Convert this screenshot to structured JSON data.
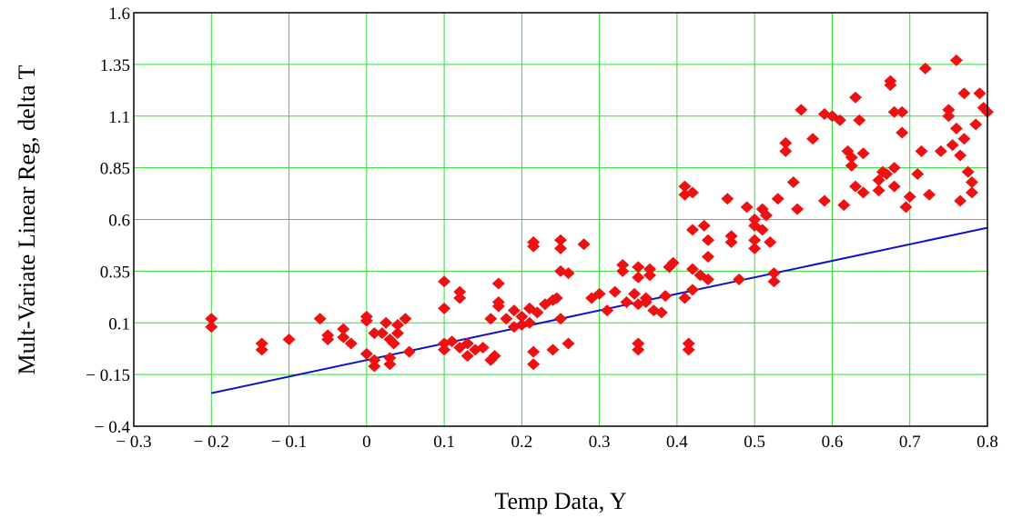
{
  "chart_data": {
    "type": "scatter",
    "title": "",
    "xlabel": "Temp Data, Y",
    "ylabel": "Mult-Variate Linear Reg, delta T",
    "xlim": [
      -0.3,
      0.8
    ],
    "ylim": [
      -0.4,
      1.6
    ],
    "xticks": [
      -0.3,
      -0.2,
      -0.1,
      0,
      0.1,
      0.2,
      0.3,
      0.4,
      0.5,
      0.6,
      0.7,
      0.8
    ],
    "xtick_labels": [
      "− 0.3",
      "− 0.2",
      "− 0.1",
      "0",
      "0.1",
      "0.2",
      "0.3",
      "0.4",
      "0.5",
      "0.6",
      "0.7",
      "0.8"
    ],
    "yticks": [
      -0.4,
      -0.15,
      0.1,
      0.35,
      0.6,
      0.85,
      1.1,
      1.35,
      1.6
    ],
    "ytick_labels": [
      "− 0.4",
      "− 0.15",
      "0.1",
      "0.35",
      "0.6",
      "0.85",
      "1.1",
      "1.35",
      "1.6"
    ],
    "grid": true,
    "colors": {
      "points": "#ee1111",
      "line": "#1010cc",
      "grid": "#33dd33"
    },
    "series": [
      {
        "type": "scatter",
        "marker": "diamond",
        "points": [
          [
            -0.2,
            0.12
          ],
          [
            -0.2,
            0.08
          ],
          [
            -0.135,
            0.0
          ],
          [
            -0.135,
            -0.03
          ],
          [
            -0.1,
            0.02
          ],
          [
            -0.06,
            0.12
          ],
          [
            -0.05,
            0.04
          ],
          [
            -0.05,
            0.02
          ],
          [
            -0.03,
            0.07
          ],
          [
            -0.03,
            0.03
          ],
          [
            -0.02,
            0.0
          ],
          [
            0.0,
            0.13
          ],
          [
            0.0,
            0.11
          ],
          [
            0.0,
            -0.05
          ],
          [
            0.01,
            0.05
          ],
          [
            0.01,
            -0.08
          ],
          [
            0.01,
            -0.11
          ],
          [
            0.02,
            0.05
          ],
          [
            0.025,
            0.1
          ],
          [
            0.03,
            0.02
          ],
          [
            0.03,
            -0.07
          ],
          [
            0.03,
            -0.1
          ],
          [
            0.035,
            0.0
          ],
          [
            0.04,
            0.09
          ],
          [
            0.04,
            0.05
          ],
          [
            0.05,
            0.12
          ],
          [
            0.055,
            -0.04
          ],
          [
            0.1,
            0.3
          ],
          [
            0.1,
            0.17
          ],
          [
            0.1,
            0.0
          ],
          [
            0.1,
            -0.03
          ],
          [
            0.11,
            0.01
          ],
          [
            0.12,
            0.25
          ],
          [
            0.12,
            0.22
          ],
          [
            0.12,
            -0.02
          ],
          [
            0.13,
            0.0
          ],
          [
            0.13,
            -0.06
          ],
          [
            0.14,
            -0.03
          ],
          [
            0.15,
            -0.02
          ],
          [
            0.16,
            0.12
          ],
          [
            0.16,
            -0.08
          ],
          [
            0.165,
            -0.06
          ],
          [
            0.17,
            0.29
          ],
          [
            0.17,
            0.2
          ],
          [
            0.17,
            0.18
          ],
          [
            0.18,
            0.12
          ],
          [
            0.19,
            0.16
          ],
          [
            0.19,
            0.08
          ],
          [
            0.2,
            0.13
          ],
          [
            0.2,
            0.09
          ],
          [
            0.21,
            0.17
          ],
          [
            0.21,
            0.1
          ],
          [
            0.215,
            0.49
          ],
          [
            0.215,
            0.47
          ],
          [
            0.215,
            -0.04
          ],
          [
            0.215,
            -0.1
          ],
          [
            0.22,
            0.15
          ],
          [
            0.23,
            0.19
          ],
          [
            0.24,
            0.21
          ],
          [
            0.24,
            -0.03
          ],
          [
            0.245,
            0.22
          ],
          [
            0.25,
            0.5
          ],
          [
            0.25,
            0.46
          ],
          [
            0.25,
            0.35
          ],
          [
            0.25,
            0.12
          ],
          [
            0.26,
            0.34
          ],
          [
            0.26,
            0.0
          ],
          [
            0.28,
            0.48
          ],
          [
            0.29,
            0.22
          ],
          [
            0.3,
            0.24
          ],
          [
            0.31,
            0.16
          ],
          [
            0.32,
            0.25
          ],
          [
            0.33,
            0.38
          ],
          [
            0.33,
            0.35
          ],
          [
            0.335,
            0.2
          ],
          [
            0.345,
            0.24
          ],
          [
            0.35,
            0.37
          ],
          [
            0.35,
            0.32
          ],
          [
            0.35,
            0.19
          ],
          [
            0.35,
            0.0
          ],
          [
            0.35,
            -0.03
          ],
          [
            0.36,
            0.22
          ],
          [
            0.36,
            0.2
          ],
          [
            0.365,
            0.36
          ],
          [
            0.365,
            0.33
          ],
          [
            0.37,
            0.16
          ],
          [
            0.38,
            0.15
          ],
          [
            0.385,
            0.23
          ],
          [
            0.39,
            0.37
          ],
          [
            0.395,
            0.39
          ],
          [
            0.41,
            0.76
          ],
          [
            0.41,
            0.72
          ],
          [
            0.41,
            0.22
          ],
          [
            0.415,
            0.0
          ],
          [
            0.415,
            -0.03
          ],
          [
            0.42,
            0.73
          ],
          [
            0.42,
            0.55
          ],
          [
            0.42,
            0.36
          ],
          [
            0.42,
            0.26
          ],
          [
            0.43,
            0.33
          ],
          [
            0.435,
            0.57
          ],
          [
            0.44,
            0.5
          ],
          [
            0.44,
            0.42
          ],
          [
            0.44,
            0.31
          ],
          [
            0.465,
            0.7
          ],
          [
            0.47,
            0.52
          ],
          [
            0.47,
            0.49
          ],
          [
            0.48,
            0.31
          ],
          [
            0.49,
            0.66
          ],
          [
            0.5,
            0.6
          ],
          [
            0.5,
            0.57
          ],
          [
            0.5,
            0.5
          ],
          [
            0.5,
            0.46
          ],
          [
            0.51,
            0.65
          ],
          [
            0.51,
            0.55
          ],
          [
            0.515,
            0.62
          ],
          [
            0.52,
            0.49
          ],
          [
            0.525,
            0.34
          ],
          [
            0.525,
            0.3
          ],
          [
            0.53,
            0.7
          ],
          [
            0.54,
            0.97
          ],
          [
            0.54,
            0.93
          ],
          [
            0.55,
            0.78
          ],
          [
            0.555,
            0.65
          ],
          [
            0.56,
            1.13
          ],
          [
            0.575,
            0.99
          ],
          [
            0.59,
            1.11
          ],
          [
            0.59,
            0.69
          ],
          [
            0.6,
            1.1
          ],
          [
            0.61,
            1.08
          ],
          [
            0.615,
            0.67
          ],
          [
            0.62,
            0.93
          ],
          [
            0.625,
            0.9
          ],
          [
            0.625,
            0.86
          ],
          [
            0.63,
            1.19
          ],
          [
            0.63,
            0.76
          ],
          [
            0.635,
            1.08
          ],
          [
            0.64,
            0.92
          ],
          [
            0.64,
            0.73
          ],
          [
            0.66,
            0.79
          ],
          [
            0.66,
            0.74
          ],
          [
            0.665,
            0.83
          ],
          [
            0.67,
            0.82
          ],
          [
            0.675,
            1.27
          ],
          [
            0.675,
            1.25
          ],
          [
            0.68,
            1.12
          ],
          [
            0.68,
            0.85
          ],
          [
            0.68,
            0.76
          ],
          [
            0.69,
            1.12
          ],
          [
            0.69,
            1.02
          ],
          [
            0.695,
            0.66
          ],
          [
            0.7,
            0.71
          ],
          [
            0.71,
            0.82
          ],
          [
            0.715,
            0.93
          ],
          [
            0.72,
            1.33
          ],
          [
            0.725,
            0.72
          ],
          [
            0.74,
            0.93
          ],
          [
            0.75,
            1.13
          ],
          [
            0.75,
            1.1
          ],
          [
            0.755,
            0.96
          ],
          [
            0.76,
            1.37
          ],
          [
            0.76,
            1.04
          ],
          [
            0.765,
            0.91
          ],
          [
            0.765,
            0.69
          ],
          [
            0.77,
            1.21
          ],
          [
            0.77,
            0.99
          ],
          [
            0.775,
            0.83
          ],
          [
            0.78,
            0.78
          ],
          [
            0.78,
            0.73
          ],
          [
            0.785,
            1.06
          ],
          [
            0.79,
            1.21
          ],
          [
            0.795,
            1.14
          ],
          [
            0.8,
            1.12
          ]
        ]
      },
      {
        "type": "line",
        "points": [
          [
            -0.2,
            -0.24
          ],
          [
            0.8,
            0.56
          ]
        ]
      }
    ]
  }
}
